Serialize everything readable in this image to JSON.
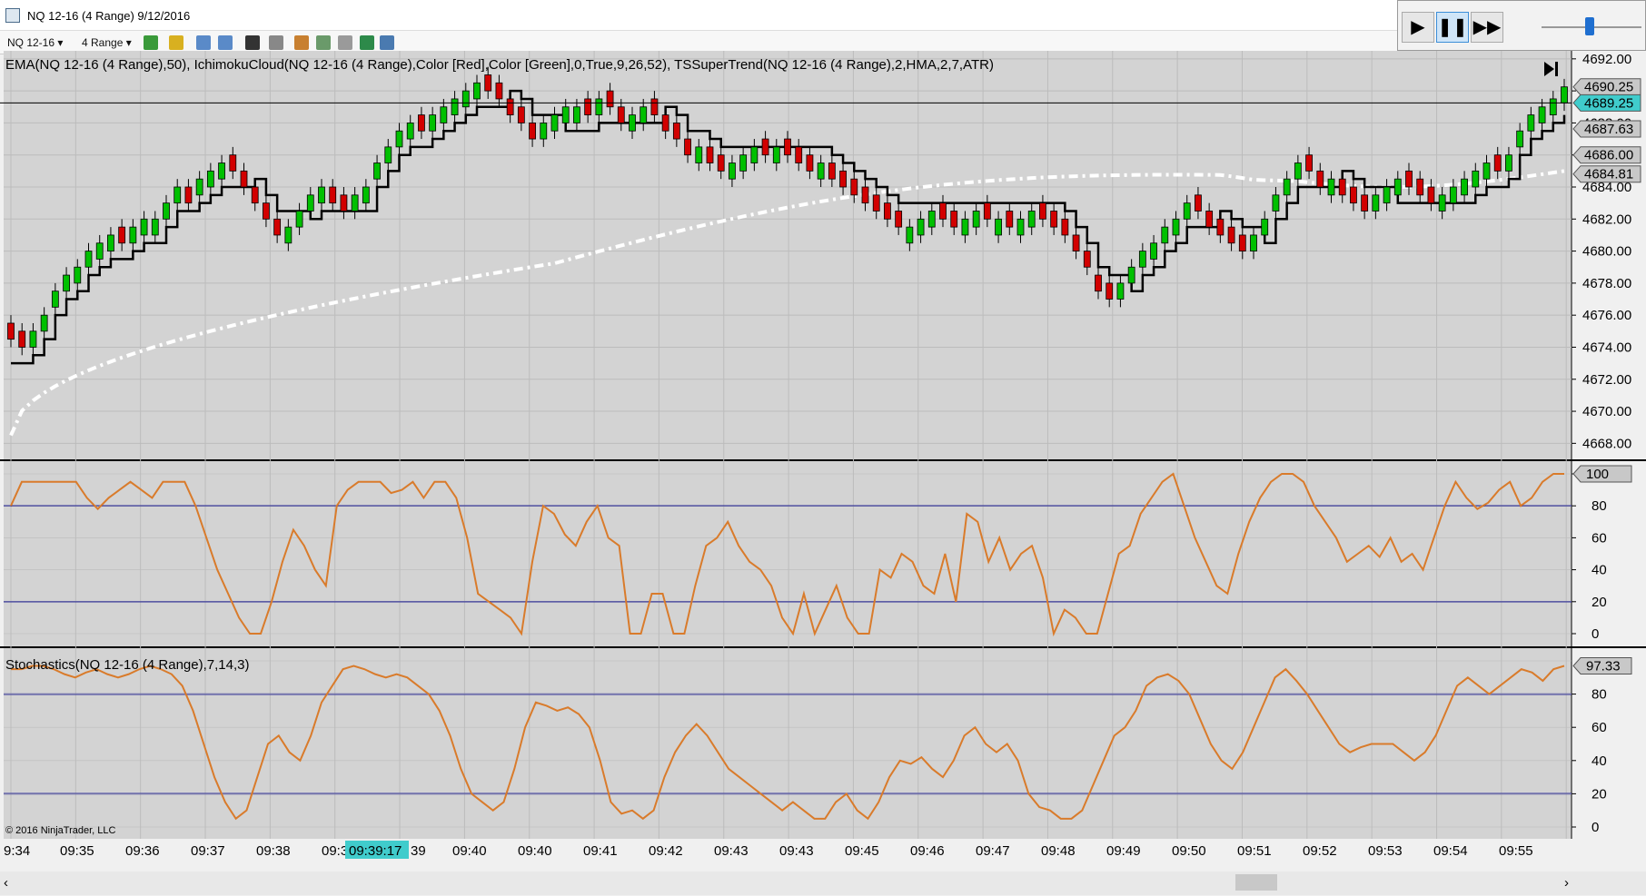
{
  "window": {
    "title": "NQ 12-16 (4 Range)  9/12/2016"
  },
  "toolbar": {
    "instrument": "NQ 12-16",
    "period": "4 Range"
  },
  "playback": {
    "play_icon": "play-icon",
    "pause_icon": "pause-icon",
    "fast_forward_icon": "fast-forward-icon"
  },
  "colors": {
    "panel_bg": "#d3d3d3",
    "up_candle": "#00c000",
    "down_candle": "#d20000",
    "supertrend": "#000000",
    "ema": "#ffffff",
    "oscillator": "#d97b2b",
    "level_line": "#00008b",
    "price_marker": "#40cccc"
  },
  "legends": {
    "price": "EMA(NQ 12-16 (4 Range),50), IchimokuCloud(NQ 12-16 (4 Range),Color [Red],Color [Green],0,True,9,26,52), TSSuperTrend(NQ 12-16 (4 Range),2,HMA,2,7,ATR)",
    "stochastics": "Stochastics(NQ 12-16 (4 Range),7,14,3)",
    "copyright": "© 2016 NinjaTrader, LLC"
  },
  "price_axis": {
    "ticks": [
      "4692.00",
      "4690.00",
      "4688.00",
      "4686.00",
      "4684.00",
      "4682.00",
      "4680.00",
      "4678.00",
      "4676.00",
      "4674.00",
      "4672.00",
      "4670.00",
      "4668.00"
    ],
    "markers": [
      {
        "label": "4690.25",
        "value": 4690.25,
        "highlight": false
      },
      {
        "label": "4689.25",
        "value": 4689.25,
        "highlight": true
      },
      {
        "label": "4687.63",
        "value": 4687.63,
        "highlight": false
      },
      {
        "label": "4686.00",
        "value": 4686.0,
        "highlight": false
      },
      {
        "label": "4684.81",
        "value": 4684.81,
        "highlight": false
      }
    ]
  },
  "oscillator_axis": {
    "ticks": [
      "100",
      "80",
      "60",
      "40",
      "20",
      "0"
    ],
    "marker": "100"
  },
  "stochastics_axis": {
    "ticks": [
      "80",
      "60",
      "40",
      "20",
      "0"
    ],
    "marker": "97.33"
  },
  "time_axis": {
    "labels": [
      "9:34",
      "09:35",
      "09:36",
      "09:37",
      "09:38",
      "09:3",
      "09:39:17",
      "39",
      "09:40",
      "09:40",
      "09:41",
      "09:42",
      "09:43",
      "09:43",
      "09:45",
      "09:46",
      "09:47",
      "09:48",
      "09:49",
      "09:50",
      "09:51",
      "09:52",
      "09:53",
      "09:54",
      "09:55"
    ],
    "crosshair_label": "09:39:17"
  },
  "chart_data": {
    "type": "candlestick",
    "instrument": "NQ 12-16 (4 Range)",
    "candles_close": [
      4674.5,
      4674.0,
      4675.0,
      4676.0,
      4677.5,
      4678.5,
      4679.0,
      4680.0,
      4680.5,
      4681.0,
      4680.5,
      4681.5,
      4682.0,
      4682.0,
      4683.0,
      4684.0,
      4683.0,
      4684.5,
      4685.0,
      4685.5,
      4685.0,
      4684.0,
      4683.0,
      4682.0,
      4681.0,
      4681.5,
      4682.5,
      4683.5,
      4684.0,
      4683.0,
      4682.5,
      4683.5,
      4684.0,
      4685.5,
      4686.5,
      4687.5,
      4688.0,
      4687.5,
      4688.5,
      4689.0,
      4689.5,
      4690.0,
      4690.5,
      4690.0,
      4689.5,
      4688.5,
      4688.0,
      4687.0,
      4688.0,
      4688.5,
      4689.0,
      4689.0,
      4688.5,
      4689.5,
      4689.0,
      4688.0,
      4688.5,
      4689.0,
      4688.5,
      4687.5,
      4687.0,
      4686.0,
      4686.5,
      4685.5,
      4685.0,
      4685.5,
      4686.0,
      4686.5,
      4686.0,
      4686.5,
      4686.0,
      4685.5,
      4685.0,
      4685.5,
      4684.5,
      4684.0,
      4683.5,
      4683.0,
      4682.5,
      4682.0,
      4681.5,
      4681.5,
      4682.0,
      4682.5,
      4682.0,
      4681.5,
      4682.0,
      4682.5,
      4682.0,
      4682.0,
      4681.5,
      4682.0,
      4682.5,
      4682.0,
      4681.5,
      4681.0,
      4680.0,
      4679.0,
      4677.5,
      4677.0,
      4678.0,
      4679.0,
      4680.0,
      4680.5,
      4681.5,
      4682.0,
      4683.0,
      4682.5,
      4681.5,
      4681.0,
      4680.5,
      4680.0,
      4681.0,
      4682.0,
      4683.5,
      4684.5,
      4685.5,
      4685.0,
      4684.0,
      4684.5,
      4683.5,
      4683.0,
      4682.5,
      4683.5,
      4684.0,
      4684.5,
      4684.0,
      4683.5,
      4683.0,
      4683.5,
      4684.0,
      4684.5,
      4685.0,
      4685.5,
      4685.0,
      4686.0,
      4687.5,
      4688.5,
      4689.0,
      4689.5,
      4690.25
    ],
    "ema50_range": [
      4668.5,
      4685.0
    ],
    "oscillator": {
      "levels": [
        80,
        20
      ],
      "values": [
        80,
        95,
        95,
        95,
        95,
        95,
        95,
        85,
        78,
        85,
        90,
        95,
        90,
        85,
        95,
        95,
        95,
        80,
        60,
        40,
        25,
        10,
        0,
        0,
        20,
        45,
        65,
        55,
        40,
        30,
        80,
        90,
        95,
        95,
        95,
        88,
        90,
        95,
        85,
        95,
        95,
        85,
        60,
        25,
        20,
        15,
        10,
        0,
        45,
        80,
        75,
        62,
        55,
        70,
        80,
        60,
        55,
        0,
        0,
        25,
        25,
        0,
        0,
        30,
        55,
        60,
        70,
        55,
        45,
        40,
        30,
        10,
        0,
        25,
        0,
        15,
        30,
        10,
        0,
        0,
        40,
        35,
        50,
        45,
        30,
        25,
        50,
        20,
        75,
        70,
        45,
        60,
        40,
        50,
        55,
        35,
        0,
        15,
        10,
        0,
        0,
        25,
        50,
        55,
        75,
        85,
        95,
        100,
        80,
        60,
        45,
        30,
        25,
        50,
        70,
        85,
        95,
        100,
        100,
        95,
        80,
        70,
        60,
        45,
        50,
        55,
        48,
        60,
        45,
        50,
        40,
        60,
        80,
        95,
        85,
        78,
        82,
        90,
        95,
        80,
        85,
        95,
        100,
        100
      ]
    },
    "stochastics": {
      "levels": [
        80,
        20
      ],
      "values": [
        95,
        95,
        97,
        97,
        95,
        92,
        90,
        93,
        95,
        92,
        90,
        92,
        95,
        97,
        95,
        92,
        85,
        70,
        50,
        30,
        15,
        5,
        10,
        30,
        50,
        55,
        45,
        40,
        55,
        75,
        85,
        95,
        97,
        95,
        92,
        90,
        92,
        90,
        85,
        80,
        70,
        55,
        35,
        20,
        15,
        10,
        15,
        35,
        60,
        75,
        73,
        70,
        72,
        68,
        60,
        40,
        15,
        8,
        10,
        5,
        10,
        30,
        45,
        55,
        62,
        55,
        45,
        35,
        30,
        25,
        20,
        15,
        10,
        15,
        10,
        5,
        5,
        15,
        20,
        10,
        5,
        15,
        30,
        40,
        38,
        42,
        35,
        30,
        40,
        55,
        60,
        50,
        45,
        50,
        40,
        20,
        12,
        10,
        5,
        5,
        10,
        25,
        40,
        55,
        60,
        70,
        85,
        90,
        92,
        88,
        80,
        65,
        50,
        40,
        35,
        45,
        60,
        75,
        90,
        95,
        88,
        80,
        70,
        60,
        50,
        45,
        48,
        50,
        50,
        50,
        45,
        40,
        45,
        55,
        70,
        85,
        90,
        85,
        80,
        85,
        90,
        95,
        93,
        88,
        95,
        97
      ]
    }
  }
}
